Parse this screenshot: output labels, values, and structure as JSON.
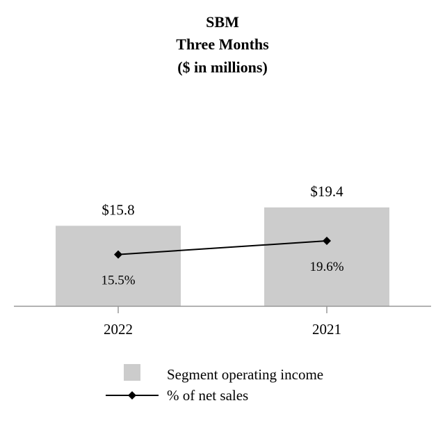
{
  "chart_data": {
    "type": "bar",
    "title": [
      "SBM",
      "Three Months",
      "($ in millions)"
    ],
    "categories": [
      "2022",
      "2021"
    ],
    "series": [
      {
        "name": "Segment operating income",
        "kind": "bar",
        "values": [
          15.8,
          19.4
        ],
        "labels": [
          "$15.8",
          "$19.4"
        ],
        "color": "#cccccc"
      },
      {
        "name": "% of net sales",
        "kind": "line",
        "values": [
          15.5,
          19.6
        ],
        "labels": [
          "15.5%",
          "19.6%"
        ],
        "color": "#000000"
      }
    ],
    "xlabel": "",
    "ylabel": "",
    "ylim": [
      0,
      20
    ],
    "pct_ylim": [
      0,
      40
    ],
    "grid": false,
    "legend": "bottom-center"
  }
}
